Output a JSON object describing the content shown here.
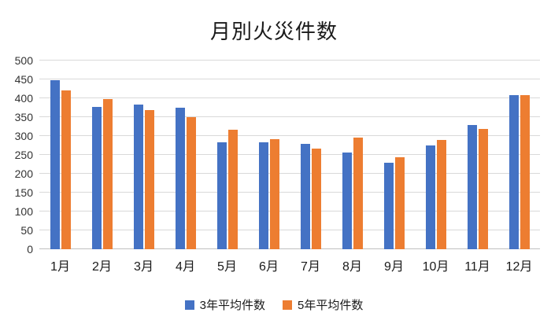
{
  "title": "月別火災件数",
  "chart_data": {
    "type": "bar",
    "title": "月別火災件数",
    "categories": [
      "1月",
      "2月",
      "3月",
      "4月",
      "5月",
      "6月",
      "7月",
      "8月",
      "9月",
      "10月",
      "11月",
      "12月"
    ],
    "series": [
      {
        "name": "3年平均件数",
        "color": "#4472C4",
        "values": [
          448,
          378,
          383,
          375,
          283,
          283,
          280,
          257,
          230,
          276,
          330,
          408
        ]
      },
      {
        "name": "5年平均件数",
        "color": "#ED7D31",
        "values": [
          420,
          397,
          368,
          350,
          317,
          292,
          267,
          296,
          243,
          289,
          318,
          408
        ]
      }
    ],
    "xlabel": "",
    "ylabel": "",
    "ylim": [
      0,
      500
    ],
    "ytick_interval": 50,
    "grid": true,
    "legend_position": "bottom"
  }
}
